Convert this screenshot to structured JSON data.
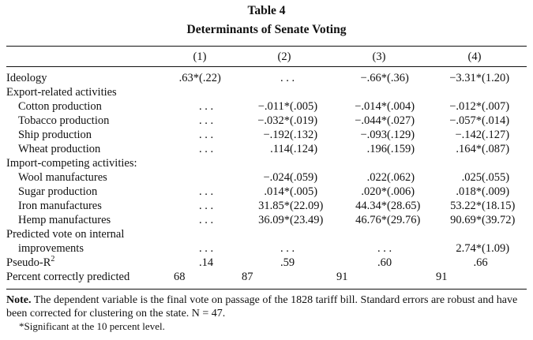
{
  "table": {
    "number": "Table 4",
    "title": "Determinants of Senate Voting",
    "columns": [
      "(1)",
      "(2)",
      "(3)",
      "(4)"
    ],
    "rows": [
      {
        "label": "Ideology",
        "cells": [
          ".63* (.22)",
          ". . .",
          "−.66*   (.36)",
          "−3.31*  (1.20)"
        ]
      },
      {
        "label": "Export-related activities",
        "section": true
      },
      {
        "label": "Cotton production",
        "cells": [
          ". . .",
          "−.011*  (.005)",
          "−.014*  (.004)",
          "−.012*  (.007)"
        ]
      },
      {
        "label": "Tobacco production",
        "cells": [
          ". . .",
          "−.032*  (.019)",
          "−.044*  (.027)",
          "−.057*  (.014)"
        ]
      },
      {
        "label": "Ship production",
        "cells": [
          ". . .",
          "−.192   (.132)",
          "−.093   (.129)",
          "−.142   (.127)"
        ]
      },
      {
        "label": "Wheat production",
        "cells": [
          ". . .",
          ".114   (.124)",
          ".196   (.159)",
          ".164*  (.087)"
        ]
      },
      {
        "label": "Import-competing activities:",
        "section": true
      },
      {
        "label": "Wool manufactures",
        "cells": [
          ". . .",
          "−.024   (.059)",
          ".022   (.062)",
          ".025   (.055)"
        ]
      },
      {
        "label": "Sugar production",
        "cells": [
          ". . .",
          ".014*  (.005)",
          ".020*  (.006)",
          ".018*  (.009)"
        ]
      },
      {
        "label": "Iron manufactures",
        "cells": [
          ". . .",
          "31.85* (22.09)",
          "44.34* (28.65)",
          "53.22* (18.15)"
        ]
      },
      {
        "label": "Hemp manufactures",
        "cells": [
          ". . .",
          "36.09* (23.49)",
          "46.76* (29.76)",
          "90.69* (39.72)"
        ]
      },
      {
        "label": "Predicted vote on internal",
        "section": true
      },
      {
        "label": "improvements",
        "cells": [
          ". . .",
          ". . .",
          ". . .",
          "2.74*  (1.09)"
        ]
      },
      {
        "label": "Pseudo-R",
        "label_sup": "2",
        "cells": [
          ".14",
          ".59",
          ".60",
          ".66"
        ]
      },
      {
        "label": "Percent correctly predicted",
        "cells": [
          "68",
          "87",
          "91",
          "91"
        ]
      }
    ]
  },
  "note": {
    "label": "Note.",
    "text": " The dependent variable is the final vote on passage of the 1828 tariff bill. Standard errors are robust and have been corrected for clustering on the state. N = 47.",
    "significance": "*Significant at the 10 percent level."
  }
}
